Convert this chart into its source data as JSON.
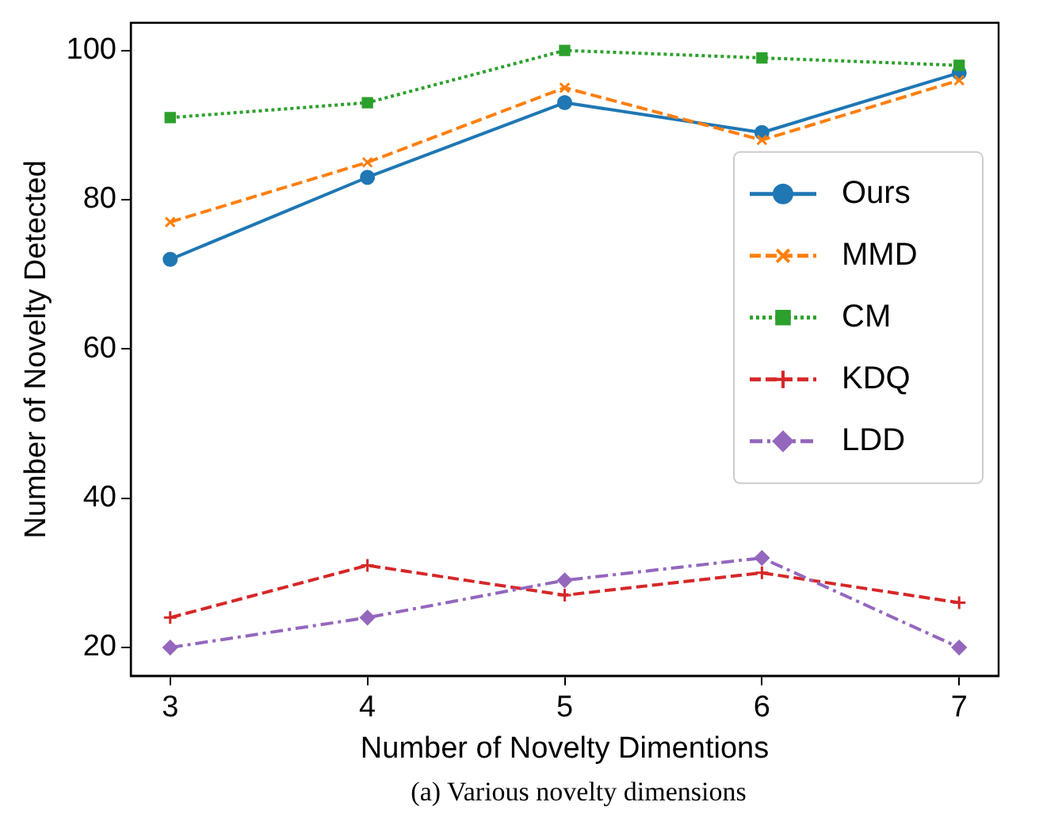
{
  "chart_data": {
    "type": "line",
    "xlabel": "Number of Novelty Dimentions",
    "ylabel": "Number of Novelty Detected",
    "annotations": [
      "(a) Various novelty dimensions"
    ],
    "x": [
      3,
      4,
      5,
      6,
      7
    ],
    "xlim": [
      2.8,
      7.2
    ],
    "xticks": [
      3,
      4,
      5,
      6,
      7
    ],
    "ylim": [
      16.2,
      103.7
    ],
    "yticks": [
      20,
      40,
      60,
      80,
      100
    ],
    "grid": false,
    "legend": "right",
    "series": [
      {
        "name": "Ours",
        "color": "#1f77b4",
        "values": [
          72,
          83,
          93,
          89,
          97
        ],
        "marker": "circle",
        "line_style": "solid"
      },
      {
        "name": "MMD",
        "color": "#ff7f0e",
        "values": [
          77,
          85,
          95,
          88,
          96
        ],
        "marker": "cross",
        "line_style": "dashed"
      },
      {
        "name": "CM",
        "color": "#2ca02c",
        "values": [
          91,
          93,
          100,
          99,
          98
        ],
        "marker": "square",
        "line_style": "dotted"
      },
      {
        "name": "KDQ",
        "color": "#d62728",
        "values": [
          24,
          31,
          27,
          30,
          26
        ],
        "marker": "plus",
        "line_style": "dashed"
      },
      {
        "name": "LDD",
        "color": "#9467bd",
        "values": [
          20,
          24,
          29,
          32,
          20
        ],
        "marker": "diamond",
        "line_style": "dashdot"
      }
    ]
  }
}
